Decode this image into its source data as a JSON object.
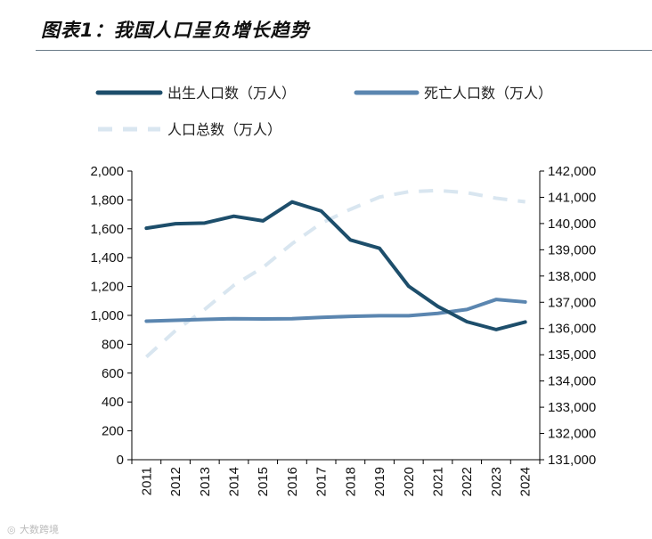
{
  "title": "图表1：我国人口呈负增长趋势",
  "watermark": "大数跨境",
  "chart_data": {
    "type": "line",
    "title": "图表1：我国人口呈负增长趋势",
    "categories": [
      "2011",
      "2012",
      "2013",
      "2014",
      "2015",
      "2016",
      "2017",
      "2018",
      "2019",
      "2020",
      "2021",
      "2022",
      "2023",
      "2024"
    ],
    "series": [
      {
        "name": "出生人口数（万人）",
        "axis": "left",
        "style": "solid",
        "color": "#1d4e6b",
        "values": [
          1604,
          1635,
          1640,
          1687,
          1655,
          1786,
          1723,
          1523,
          1465,
          1202,
          1062,
          956,
          902,
          954
        ]
      },
      {
        "name": "死亡人口数（万人）",
        "axis": "left",
        "style": "solid",
        "color": "#5b86b0",
        "values": [
          960,
          966,
          972,
          977,
          975,
          977,
          986,
          993,
          998,
          998,
          1014,
          1041,
          1110,
          1093
        ]
      },
      {
        "name": "人口总数（万人）",
        "axis": "right",
        "style": "dashed",
        "color": "#d9e6f0",
        "values": [
          134916,
          135922,
          136726,
          137646,
          138326,
          139232,
          140011,
          140541,
          141008,
          141212,
          141260,
          141175,
          140967,
          140828
        ]
      }
    ],
    "y_left": {
      "min": 0,
      "max": 2000,
      "step": 200,
      "tick_labels": [
        "0",
        "200",
        "400",
        "600",
        "800",
        "1,000",
        "1,200",
        "1,400",
        "1,600",
        "1,800",
        "2,000"
      ]
    },
    "y_right": {
      "min": 131000,
      "max": 142000,
      "step": 1000,
      "tick_labels": [
        "131,000",
        "132,000",
        "133,000",
        "134,000",
        "135,000",
        "136,000",
        "137,000",
        "138,000",
        "139,000",
        "140,000",
        "141,000",
        "142,000"
      ]
    },
    "legend_position": "top-left",
    "grid": false
  }
}
